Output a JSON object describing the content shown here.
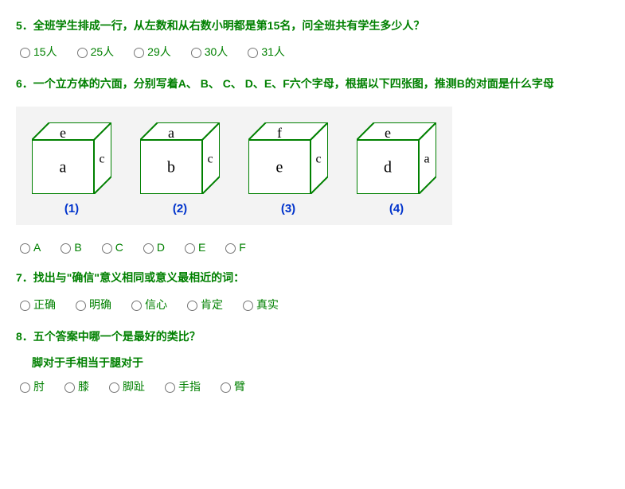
{
  "q5": {
    "number": "5．",
    "text": "全班学生排成一行，从左数和从右数小明都是第15名，问全班共有学生多少人？",
    "options": [
      "15人",
      "25人",
      "29人",
      "30人",
      "31人"
    ]
  },
  "q6": {
    "number": "6．",
    "text": "一个立方体的六面，分别写着A、 B、 C、 D、E、F六个字母，根据以下四张图，推测B的对面是什么字母",
    "cubes": [
      {
        "top": "e",
        "front": "a",
        "side": "c",
        "label": "(1)"
      },
      {
        "top": "a",
        "front": "b",
        "side": "c",
        "label": "(2)"
      },
      {
        "top": "f",
        "front": "e",
        "side": "c",
        "label": "(3)"
      },
      {
        "top": "e",
        "front": "d",
        "side": "a",
        "label": "(4)"
      }
    ],
    "cube_style": {
      "stroke": "#008000",
      "stroke_width": 2,
      "fill": "#ffffff",
      "text_color": "#000000",
      "font_size": 18,
      "font_family": "Times New Roman, serif",
      "width": 100,
      "height": 90
    },
    "options": [
      "A",
      "B",
      "C",
      "D",
      "E",
      "F"
    ]
  },
  "q7": {
    "number": "7．",
    "text": "找出与\"确信\"意义相同或意义最相近的词：",
    "options": [
      "正确",
      "明确",
      "信心",
      "肯定",
      "真实"
    ]
  },
  "q8": {
    "number": "8．",
    "text": "五个答案中哪一个是最好的类比？",
    "subtext": "脚对于手相当于腿对于",
    "options": [
      "肘",
      "膝",
      "脚趾",
      "手指",
      "臂"
    ]
  }
}
